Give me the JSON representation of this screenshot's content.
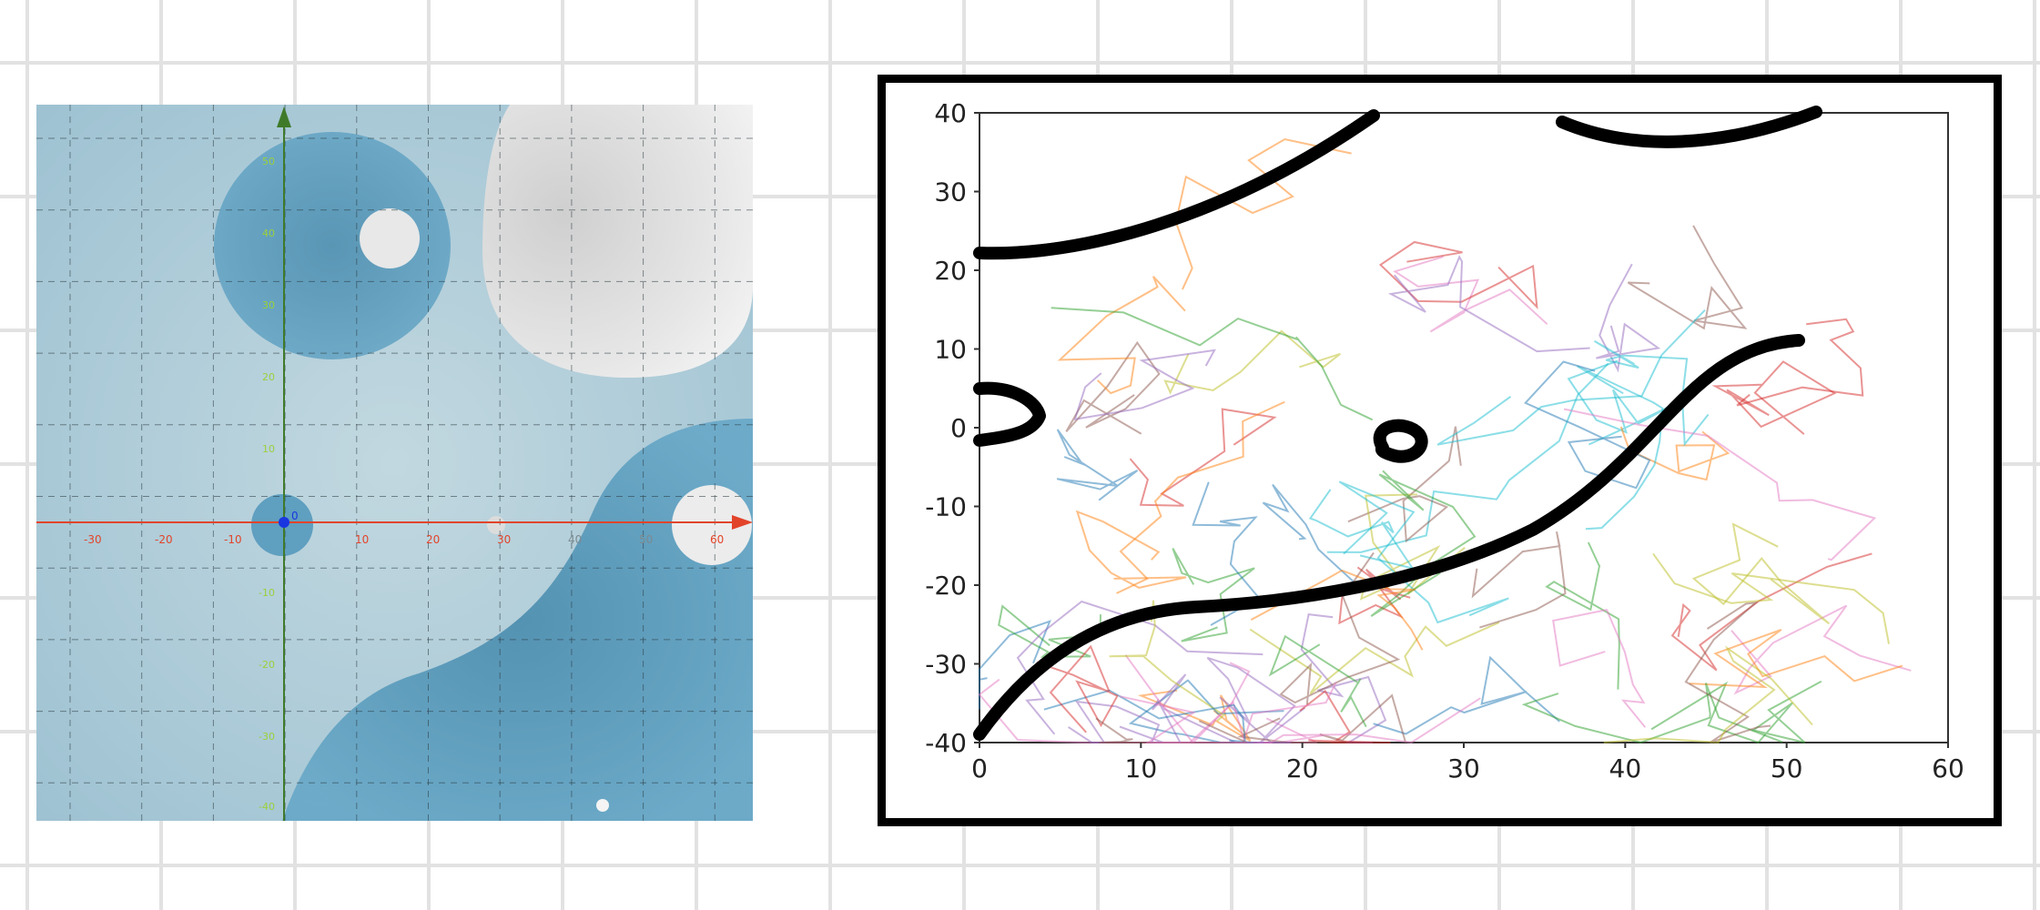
{
  "left_plot": {
    "x_tick_labels": [
      "-30",
      "-20",
      "-10",
      "10",
      "20",
      "30",
      "40",
      "50",
      "60"
    ],
    "y_tick_labels": [
      "50",
      "40",
      "30",
      "20",
      "10",
      "-10",
      "-20",
      "-30",
      "-40"
    ],
    "origin_label": "0",
    "colors": {
      "background": "#a9ccd9",
      "blue_region": "#5f9fc0",
      "white_region": "#e4e4e4",
      "x_axis": "#e2442a",
      "y_axis": "#3f7a2a",
      "tick_label_y": "#9bd03a"
    }
  },
  "chart_data": {
    "type": "line",
    "title": "",
    "xlabel": "",
    "ylabel": "",
    "xlim": [
      0,
      60
    ],
    "ylim": [
      -40,
      40
    ],
    "x_ticks": [
      "0",
      "10",
      "20",
      "30",
      "40",
      "50",
      "60"
    ],
    "y_ticks": [
      "40",
      "30",
      "20",
      "10",
      "0",
      "-10",
      "-20",
      "-30",
      "-40"
    ],
    "grid": false,
    "legend": "none",
    "series_colors": [
      "#1f77b4",
      "#ff7f0e",
      "#2ca02c",
      "#d62728",
      "#9467bd",
      "#8c564b",
      "#e377c2",
      "#bcbd22",
      "#17becf"
    ],
    "annotation_strokes_color": "#000000"
  }
}
